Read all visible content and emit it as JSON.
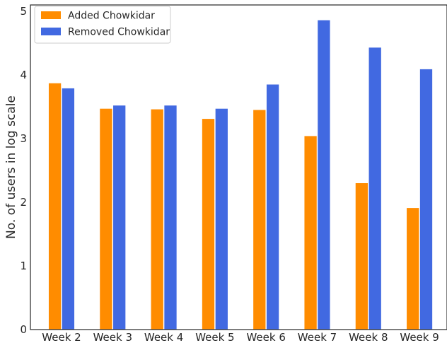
{
  "chart_data": {
    "type": "bar",
    "categories": [
      "Week 2",
      "Week 3",
      "Week 4",
      "Week 5",
      "Week 6",
      "Week 7",
      "Week 8",
      "Week 9"
    ],
    "series": [
      {
        "name": "Added Chowkidar",
        "color": "#ff8c00",
        "values": [
          3.87,
          3.47,
          3.46,
          3.31,
          3.45,
          3.04,
          2.3,
          1.91
        ]
      },
      {
        "name": "Removed Chowkidar",
        "color": "#4169e1",
        "values": [
          3.79,
          3.52,
          3.52,
          3.47,
          3.85,
          4.86,
          4.43,
          4.09
        ]
      }
    ],
    "xlabel": "",
    "ylabel": "No. of users in log scale",
    "ylim": [
      0,
      5.1
    ],
    "yticks": [
      0,
      1,
      2,
      3,
      4,
      5
    ],
    "grid": false,
    "legend_position": "top-left"
  }
}
